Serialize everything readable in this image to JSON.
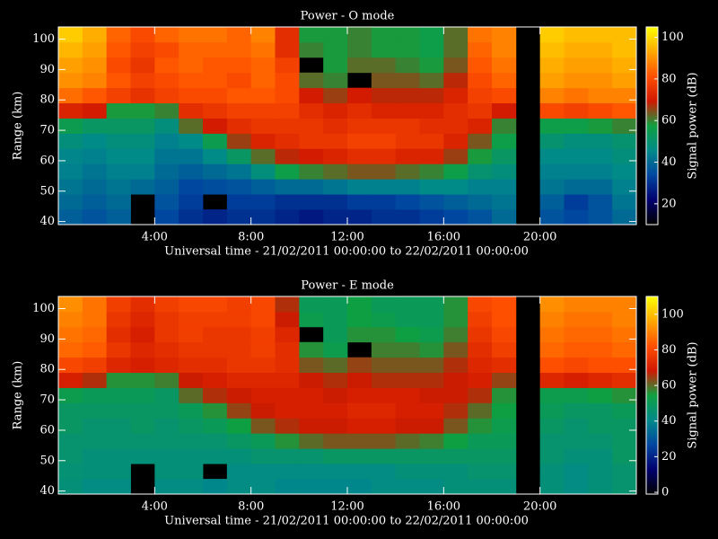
{
  "chart_data": [
    {
      "type": "heatmap",
      "title": "Power - O mode",
      "x_label": "Universal time - 21/02/2011 00:00:00 to 22/02/2011 00:00:00",
      "y_label": "Range (km)",
      "colorbar_label": "Signal power (dB)",
      "xbins": [
        0,
        1,
        2,
        3,
        4,
        5,
        6,
        7,
        8,
        9,
        10,
        11,
        12,
        13,
        14,
        15,
        16,
        17,
        18,
        19,
        20,
        21,
        22,
        23,
        24
      ],
      "ybins": [
        39,
        44,
        49,
        54,
        59,
        64,
        69,
        74,
        79,
        84,
        89,
        94,
        99,
        104
      ],
      "xlim": [
        0,
        24
      ],
      "ylim": [
        39,
        104
      ],
      "zlim": [
        10,
        105
      ],
      "xticks": [
        {
          "value": 4,
          "label": "4:00"
        },
        {
          "value": 8,
          "label": "8:00"
        },
        {
          "value": 12,
          "label": "12:00"
        },
        {
          "value": 16,
          "label": "16:00"
        },
        {
          "value": 20,
          "label": "20:00"
        }
      ],
      "yticks": [
        40,
        50,
        60,
        70,
        80,
        90,
        100
      ],
      "zticks": [
        20,
        40,
        60,
        80,
        100
      ],
      "colormap": [
        "#000000",
        "#00006e",
        "#0046a0",
        "#008a8a",
        "#10a040",
        "#d01800",
        "#ff5000",
        "#ffa800",
        "#ffff00"
      ],
      "z": [
        [
          38,
          40,
          42,
          44,
          45,
          48,
          55,
          72,
          85,
          90,
          92,
          95,
          98
        ],
        [
          36,
          38,
          40,
          42,
          44,
          46,
          52,
          70,
          82,
          88,
          90,
          92,
          94
        ],
        [
          38,
          40,
          42,
          44,
          46,
          48,
          52,
          58,
          78,
          82,
          80,
          82,
          84
        ],
        [
          null,
          null,
          40,
          44,
          46,
          48,
          52,
          58,
          75,
          78,
          76,
          78,
          80
        ],
        [
          34,
          36,
          38,
          40,
          42,
          44,
          48,
          60,
          78,
          80,
          82,
          80,
          84
        ],
        [
          30,
          32,
          34,
          38,
          42,
          46,
          62,
          74,
          80,
          82,
          84,
          84,
          86
        ],
        [
          28,
          null,
          35,
          40,
          46,
          55,
          70,
          76,
          80,
          82,
          82,
          84,
          86
        ],
        [
          30,
          32,
          36,
          42,
          52,
          66,
          74,
          78,
          82,
          80,
          82,
          84,
          84
        ],
        [
          30,
          32,
          38,
          48,
          62,
          72,
          76,
          78,
          82,
          84,
          84,
          86,
          88
        ],
        [
          28,
          30,
          40,
          56,
          68,
          74,
          76,
          78,
          80,
          80,
          78,
          74,
          74
        ],
        [
          26,
          30,
          40,
          60,
          70,
          76,
          76,
          74,
          70,
          62,
          null,
          60,
          58
        ],
        [
          28,
          30,
          42,
          62,
          72,
          76,
          74,
          72,
          66,
          60,
          58,
          58,
          58
        ],
        [
          28,
          32,
          44,
          64,
          74,
          78,
          76,
          74,
          70,
          null,
          62,
          60,
          60
        ],
        [
          30,
          32,
          44,
          64,
          74,
          78,
          76,
          72,
          68,
          64,
          62,
          58,
          58
        ],
        [
          30,
          34,
          44,
          62,
          72,
          76,
          76,
          72,
          68,
          64,
          60,
          58,
          58
        ],
        [
          32,
          36,
          46,
          60,
          72,
          76,
          74,
          72,
          68,
          62,
          58,
          56,
          56
        ],
        [
          34,
          38,
          46,
          56,
          66,
          72,
          74,
          74,
          72,
          68,
          64,
          62,
          62
        ],
        [
          36,
          40,
          44,
          50,
          58,
          64,
          72,
          76,
          78,
          80,
          82,
          84,
          86
        ],
        [
          40,
          42,
          44,
          48,
          52,
          56,
          60,
          70,
          80,
          84,
          86,
          88,
          88
        ],
        [
          null,
          null,
          null,
          null,
          null,
          null,
          null,
          null,
          null,
          null,
          null,
          null,
          null
        ],
        [
          36,
          38,
          42,
          44,
          46,
          50,
          56,
          80,
          88,
          92,
          94,
          96,
          98
        ],
        [
          34,
          32,
          40,
          44,
          46,
          48,
          56,
          78,
          86,
          90,
          92,
          94,
          96
        ],
        [
          36,
          36,
          40,
          44,
          46,
          48,
          58,
          80,
          88,
          90,
          92,
          94,
          96
        ],
        [
          40,
          42,
          44,
          46,
          48,
          50,
          60,
          82,
          88,
          92,
          94,
          96,
          96
        ]
      ]
    },
    {
      "type": "heatmap",
      "title": "Power - E mode",
      "x_label": "Universal time - 21/02/2011 00:00:00 to 22/02/2011 00:00:00",
      "y_label": "Range (km)",
      "colorbar_label": "Signal power (dB)",
      "xbins": [
        0,
        1,
        2,
        3,
        4,
        5,
        6,
        7,
        8,
        9,
        10,
        11,
        12,
        13,
        14,
        15,
        16,
        17,
        18,
        19,
        20,
        21,
        22,
        23,
        24
      ],
      "ybins": [
        39,
        44,
        49,
        54,
        59,
        64,
        69,
        74,
        79,
        84,
        89,
        94,
        99,
        104
      ],
      "xlim": [
        0,
        24
      ],
      "ylim": [
        39,
        104
      ],
      "zlim": [
        -1,
        110
      ],
      "xticks": [
        {
          "value": 4,
          "label": "4:00"
        },
        {
          "value": 8,
          "label": "8:00"
        },
        {
          "value": 12,
          "label": "12:00"
        },
        {
          "value": 16,
          "label": "16:00"
        },
        {
          "value": 20,
          "label": "20:00"
        }
      ],
      "yticks": [
        40,
        50,
        60,
        70,
        80,
        90,
        100
      ],
      "zticks": [
        0,
        20,
        40,
        60,
        80,
        100
      ],
      "colormap": [
        "#000000",
        "#00006e",
        "#0046a0",
        "#008a8a",
        "#10a040",
        "#d01800",
        "#ff5000",
        "#ffa800",
        "#ffff00"
      ],
      "z": [
        [
          44,
          45,
          46,
          46,
          48,
          48,
          52,
          70,
          80,
          86,
          88,
          90,
          92
        ],
        [
          42,
          44,
          44,
          46,
          46,
          48,
          50,
          66,
          78,
          84,
          86,
          88,
          88
        ],
        [
          42,
          44,
          44,
          46,
          46,
          48,
          50,
          56,
          72,
          76,
          74,
          76,
          78
        ],
        [
          null,
          null,
          44,
          46,
          48,
          48,
          50,
          56,
          70,
          72,
          70,
          72,
          74
        ],
        [
          42,
          44,
          44,
          46,
          46,
          48,
          48,
          58,
          72,
          74,
          76,
          76,
          78
        ],
        [
          42,
          44,
          44,
          46,
          48,
          50,
          60,
          68,
          74,
          76,
          78,
          78,
          80
        ],
        [
          40,
          null,
          44,
          46,
          50,
          56,
          66,
          70,
          74,
          76,
          76,
          78,
          80
        ],
        [
          42,
          42,
          44,
          48,
          54,
          64,
          68,
          72,
          76,
          76,
          76,
          78,
          78
        ],
        [
          42,
          42,
          46,
          50,
          62,
          68,
          70,
          72,
          76,
          78,
          78,
          80,
          80
        ],
        [
          40,
          42,
          46,
          56,
          66,
          70,
          70,
          72,
          74,
          74,
          72,
          68,
          66
        ],
        [
          40,
          42,
          46,
          60,
          68,
          70,
          70,
          68,
          62,
          56,
          null,
          52,
          50
        ],
        [
          40,
          42,
          48,
          62,
          68,
          70,
          68,
          66,
          60,
          52,
          50,
          50,
          50
        ],
        [
          40,
          42,
          48,
          62,
          70,
          72,
          70,
          68,
          64,
          null,
          56,
          54,
          54
        ],
        [
          42,
          42,
          48,
          62,
          70,
          72,
          70,
          66,
          62,
          58,
          56,
          52,
          50
        ],
        [
          42,
          44,
          48,
          60,
          68,
          70,
          70,
          66,
          62,
          58,
          54,
          50,
          50
        ],
        [
          42,
          44,
          48,
          58,
          68,
          70,
          68,
          66,
          62,
          56,
          52,
          50,
          50
        ],
        [
          44,
          44,
          48,
          54,
          62,
          66,
          68,
          68,
          66,
          62,
          58,
          56,
          56
        ],
        [
          44,
          46,
          48,
          50,
          56,
          60,
          66,
          70,
          72,
          74,
          76,
          78,
          80
        ],
        [
          44,
          46,
          48,
          50,
          52,
          54,
          56,
          64,
          74,
          78,
          80,
          82,
          82
        ],
        [
          null,
          null,
          null,
          null,
          null,
          null,
          null,
          null,
          null,
          null,
          null,
          null,
          null
        ],
        [
          44,
          44,
          46,
          46,
          48,
          50,
          52,
          72,
          82,
          86,
          88,
          90,
          92
        ],
        [
          42,
          42,
          44,
          46,
          46,
          48,
          52,
          70,
          80,
          84,
          86,
          88,
          90
        ],
        [
          44,
          44,
          44,
          46,
          48,
          48,
          54,
          72,
          82,
          84,
          86,
          88,
          90
        ],
        [
          46,
          46,
          48,
          48,
          48,
          50,
          56,
          74,
          82,
          86,
          88,
          90,
          90
        ]
      ]
    }
  ]
}
